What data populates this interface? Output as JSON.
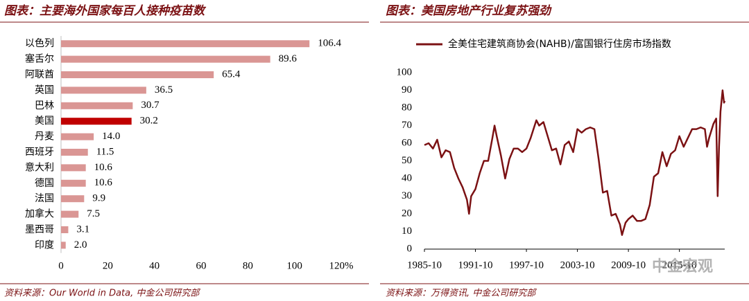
{
  "chart_data": [
    {
      "type": "hbar",
      "title": "图表：主要海外国家每百人接种疫苗数",
      "categories": [
        "以色列",
        "塞舌尔",
        "阿联酋",
        "英国",
        "巴林",
        "美国",
        "丹麦",
        "西班牙",
        "意大利",
        "德国",
        "法国",
        "加拿大",
        "墨西哥",
        "印度"
      ],
      "values": [
        106.4,
        89.6,
        65.4,
        36.5,
        30.7,
        30.2,
        14.0,
        11.5,
        10.6,
        10.6,
        9.9,
        7.5,
        3.1,
        2.0
      ],
      "value_labels": [
        "106.4",
        "89.6",
        "65.4",
        "36.5",
        "30.7",
        "30.2",
        "14.0",
        "11.5",
        "10.6",
        "10.6",
        "9.9",
        "7.5",
        "3.1",
        "2.0"
      ],
      "colors": [
        "#da9694",
        "#da9694",
        "#da9694",
        "#da9694",
        "#da9694",
        "#c00000",
        "#da9694",
        "#da9694",
        "#da9694",
        "#da9694",
        "#da9694",
        "#da9694",
        "#da9694",
        "#da9694"
      ],
      "xlim": [
        0,
        120
      ],
      "xticks": [
        0,
        20,
        40,
        60,
        80,
        100,
        {
          "value": 120,
          "label": "120%"
        }
      ],
      "source": "资料来源：Our World in Data, 中金公司研究部"
    },
    {
      "type": "line",
      "title": "图表：美国房地产行业复苏强劲",
      "x": [
        "1985-10",
        "1986-04",
        "1986-10",
        "1987-04",
        "1987-10",
        "1988-04",
        "1988-10",
        "1989-04",
        "1989-10",
        "1990-04",
        "1990-10",
        "1991-01",
        "1991-04",
        "1991-10",
        "1992-04",
        "1992-10",
        "1993-04",
        "1993-10",
        "1994-01",
        "1994-04",
        "1994-10",
        "1995-04",
        "1995-10",
        "1996-04",
        "1996-10",
        "1997-04",
        "1997-10",
        "1998-04",
        "1998-12",
        "1999-04",
        "1999-10",
        "2000-04",
        "2000-10",
        "2001-04",
        "2001-10",
        "2002-04",
        "2002-10",
        "2003-04",
        "2003-10",
        "2004-04",
        "2004-10",
        "2005-04",
        "2005-10",
        "2006-04",
        "2006-10",
        "2007-04",
        "2007-10",
        "2008-04",
        "2008-10",
        "2009-01",
        "2009-06",
        "2009-10",
        "2010-04",
        "2010-10",
        "2011-04",
        "2011-10",
        "2012-04",
        "2012-10",
        "2013-04",
        "2013-10",
        "2014-04",
        "2014-10",
        "2015-04",
        "2015-10",
        "2016-04",
        "2016-10",
        "2017-04",
        "2017-10",
        "2018-04",
        "2018-10",
        "2019-01",
        "2019-04",
        "2019-10",
        "2020-02",
        "2020-04",
        "2020-06",
        "2020-08",
        "2020-11",
        "2021-01",
        "2021-02"
      ],
      "series": [
        {
          "name": "全美住宅建筑商协会(NAHB)/富国银行住房市场指数",
          "color": "#7b1113",
          "values": [
            59,
            60,
            57,
            62,
            52,
            56,
            55,
            46,
            40,
            35,
            28,
            20,
            30,
            34,
            43,
            50,
            50,
            63,
            70,
            64,
            53,
            40,
            51,
            57,
            57,
            55,
            57,
            63,
            73,
            70,
            72,
            64,
            56,
            57,
            48,
            59,
            61,
            55,
            68,
            66,
            68,
            69,
            68,
            51,
            32,
            33,
            19,
            20,
            14,
            8,
            15,
            17,
            19,
            16,
            16,
            17,
            25,
            41,
            43,
            55,
            47,
            54,
            56,
            64,
            58,
            63,
            68,
            68,
            69,
            68,
            58,
            63,
            71,
            74,
            30,
            58,
            78,
            90,
            83,
            84
          ]
        }
      ],
      "xlim": [
        "1985-10",
        "2021-02"
      ],
      "xticks": [
        "1985-10",
        "1991-10",
        "1997-10",
        "2003-10",
        "2009-10",
        "2015-10"
      ],
      "ylim": [
        0,
        100
      ],
      "yticks": [
        0,
        10,
        20,
        30,
        40,
        50,
        60,
        70,
        80,
        90,
        100
      ],
      "watermark": "中金宏观",
      "source": "资料来源：万得资讯, 中金公司研究部"
    }
  ]
}
